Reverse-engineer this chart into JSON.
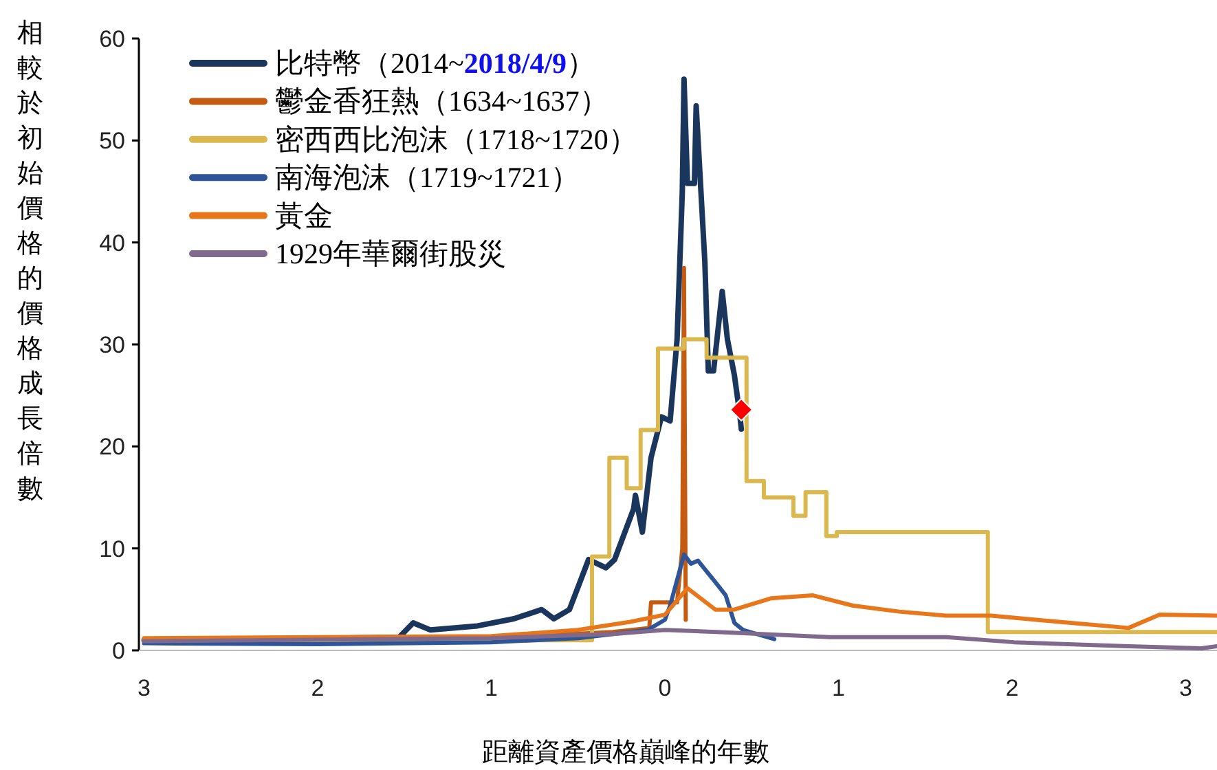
{
  "chart_data": {
    "type": "line",
    "xlabel": "距離資產價格巔峰的年數",
    "ylabel": "相較於初始價格的價格成長倍數",
    "xlim": [
      -3.03,
      3.18
    ],
    "ylim": [
      0,
      60
    ],
    "xticks": [
      {
        "value": -3,
        "label": "3"
      },
      {
        "value": -2,
        "label": "2"
      },
      {
        "value": -1,
        "label": "1"
      },
      0,
      1,
      2,
      3
    ],
    "yticks": [
      0,
      10,
      20,
      30,
      40,
      50,
      60
    ],
    "grid": false,
    "legend": "top left",
    "marker": "none",
    "line_style": "solid",
    "series": [
      {
        "name": "比特幣（2014~**2018/4/9**）",
        "color": "#1b365d",
        "x": [
          -3,
          -2.24,
          -1.53,
          -1.45,
          -1.35,
          -1.08,
          -0.87,
          -0.71,
          -0.64,
          -0.55,
          -0.44,
          -0.34,
          -0.29,
          -0.18,
          -0.17,
          -0.13,
          -0.08,
          -0.02,
          0.03,
          0.07,
          0.1,
          0.11,
          0.13,
          0.17,
          0.18,
          0.23,
          0.25,
          0.28,
          0.33,
          0.36,
          0.4,
          0.43,
          0.44
        ],
        "values": [
          1,
          1.1,
          1.3,
          2.7,
          2,
          2.4,
          3.1,
          4,
          3.1,
          4,
          8.9,
          8.1,
          8.9,
          13.9,
          15.2,
          11.6,
          18.9,
          22.9,
          22.5,
          30.5,
          44.9,
          56,
          45.8,
          45.8,
          53.4,
          38.1,
          27.4,
          27.4,
          35.2,
          30.5,
          27,
          23.3,
          21.7
        ]
      },
      {
        "name": "鬱金香狂熱（1634~1637）",
        "color": "#c55a11",
        "x": [
          -3,
          -1,
          -0.3,
          -0.09,
          -0.08,
          0.07,
          0.1,
          0.11,
          0.12
        ],
        "values": [
          1,
          1.2,
          1.8,
          2.2,
          4.7,
          4.7,
          10,
          37.5,
          3
        ]
      },
      {
        "name": "密西西比泡沫（1718~1720）",
        "color": "#dbb84d",
        "type": "step",
        "x": [
          -3,
          -0.42,
          -0.32,
          -0.22,
          -0.14,
          -0.04,
          0.11,
          0.24,
          0.47,
          0.57,
          0.74,
          0.81,
          0.93,
          0.99,
          1.86,
          3.18
        ],
        "values": [
          1,
          9.2,
          18.9,
          15.9,
          21.6,
          29.6,
          30.5,
          28.7,
          16.6,
          15,
          13.2,
          15.5,
          11.2,
          11.6,
          1.8,
          1.8
        ]
      },
      {
        "name": "南海泡沫（1719~1721）",
        "color": "#2e5597",
        "x": [
          -3,
          -2,
          -1,
          -0.5,
          -0.1,
          0,
          0.03,
          0.11,
          0.15,
          0.19,
          0.29,
          0.35,
          0.4,
          0.45,
          0.63
        ],
        "values": [
          0.7,
          0.6,
          0.8,
          1.2,
          2,
          3,
          4.4,
          9.4,
          8.5,
          8.8,
          6.7,
          5.4,
          2.7,
          2,
          1.1
        ]
      },
      {
        "name": "黃金",
        "color": "#e8771b",
        "x": [
          -3,
          -2,
          -1,
          -0.5,
          -0.2,
          0,
          0.13,
          0.29,
          0.4,
          0.61,
          0.85,
          1.08,
          1.35,
          1.62,
          1.88,
          2.27,
          2.67,
          2.85,
          3.18
        ],
        "values": [
          1.2,
          1.3,
          1.4,
          2,
          2.8,
          3.5,
          6.1,
          4,
          4,
          5.1,
          5.4,
          4.4,
          3.8,
          3.4,
          3.4,
          2.8,
          2.2,
          3.5,
          3.4
        ]
      },
      {
        "name": "1929年華爾街股災",
        "color": "#7f6a8e",
        "x": [
          -3,
          -1,
          -0.3,
          0,
          0.3,
          0.95,
          1.62,
          2.01,
          2.67,
          3.09,
          3.18
        ],
        "values": [
          0.9,
          1.2,
          1.6,
          2,
          1.8,
          1.3,
          1.3,
          0.8,
          0.4,
          0.2,
          0.4
        ]
      },
      {
        "color": "#ff0000",
        "type": "scatter",
        "marker": "diamond",
        "x": [
          0.44
        ],
        "values": [
          23.6
        ]
      }
    ]
  }
}
